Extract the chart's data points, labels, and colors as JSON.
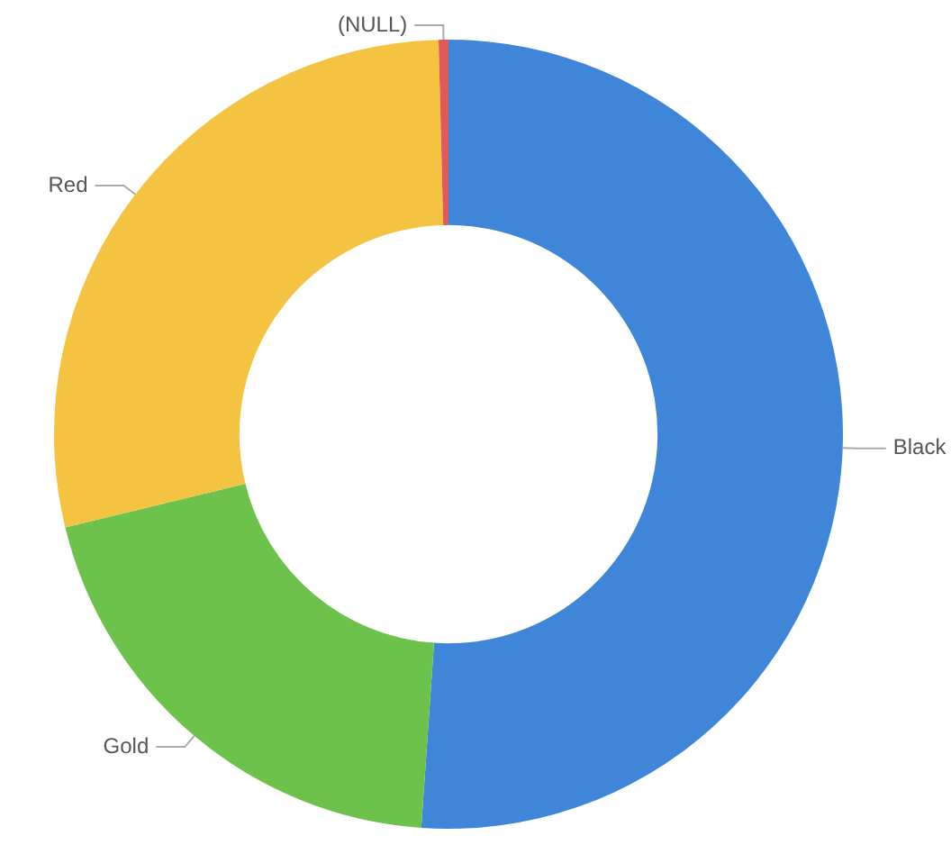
{
  "chart_data": {
    "type": "donut",
    "categories": [
      "Black",
      "Gold",
      "Red",
      "(NULL)"
    ],
    "values": [
      51.1,
      20.1,
      28.4,
      0.4
    ],
    "colors": [
      "#3f86d8",
      "#6cc24a",
      "#f5c342",
      "#e05a5a"
    ],
    "legend": false
  }
}
